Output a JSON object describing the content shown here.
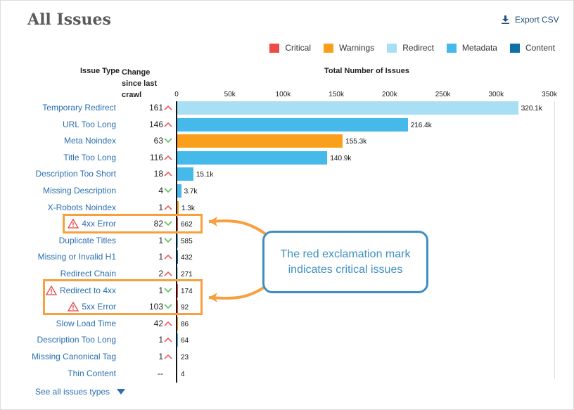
{
  "header": {
    "title": "All Issues",
    "export_label": "Export CSV"
  },
  "legend": [
    {
      "label": "Critical",
      "color": "#f04a45"
    },
    {
      "label": "Warnings",
      "color": "#f99f1b"
    },
    {
      "label": "Redirect",
      "color": "#a8dff4"
    },
    {
      "label": "Metadata",
      "color": "#45b9ea"
    },
    {
      "label": "Content",
      "color": "#0c72a6"
    }
  ],
  "columns": {
    "issue_type": "Issue Type",
    "change": "Change since last crawl",
    "total": "Total Number of Issues"
  },
  "callout": "The red exclamation mark indicates critical issues",
  "see_all": "See all issues types",
  "chart_data": {
    "type": "bar",
    "orientation": "horizontal",
    "title": "Total Number of Issues",
    "xlim": [
      0,
      350000
    ],
    "ticks": [
      "0",
      "50k",
      "100k",
      "150k",
      "200k",
      "250k",
      "300k",
      "350k"
    ],
    "rows": [
      {
        "issue": "Temporary Redirect",
        "change": "161",
        "trend": "up",
        "value": 320100,
        "label": "320.1k",
        "category": "Redirect",
        "critical": false
      },
      {
        "issue": "URL Too Long",
        "change": "146",
        "trend": "up",
        "value": 216400,
        "label": "216.4k",
        "category": "Metadata",
        "critical": false
      },
      {
        "issue": "Meta Noindex",
        "change": "63",
        "trend": "down",
        "value": 155300,
        "label": "155.3k",
        "category": "Warnings",
        "critical": false
      },
      {
        "issue": "Title Too Long",
        "change": "116",
        "trend": "up",
        "value": 140900,
        "label": "140.9k",
        "category": "Metadata",
        "critical": false
      },
      {
        "issue": "Description Too Short",
        "change": "18",
        "trend": "up",
        "value": 15100,
        "label": "15.1k",
        "category": "Metadata",
        "critical": false
      },
      {
        "issue": "Missing Description",
        "change": "4",
        "trend": "down",
        "value": 3700,
        "label": "3.7k",
        "category": "Metadata",
        "critical": false
      },
      {
        "issue": "X-Robots Noindex",
        "change": "1",
        "trend": "up",
        "value": 1300,
        "label": "1.3k",
        "category": "Warnings",
        "critical": false
      },
      {
        "issue": "4xx Error",
        "change": "82",
        "trend": "down",
        "value": 662,
        "label": "662",
        "category": "Critical",
        "critical": true
      },
      {
        "issue": "Duplicate Titles",
        "change": "1",
        "trend": "down",
        "value": 585,
        "label": "585",
        "category": "Metadata",
        "critical": false
      },
      {
        "issue": "Missing or Invalid H1",
        "change": "1",
        "trend": "up",
        "value": 432,
        "label": "432",
        "category": "Content",
        "critical": false
      },
      {
        "issue": "Redirect Chain",
        "change": "2",
        "trend": "up",
        "value": 271,
        "label": "271",
        "category": "Redirect",
        "critical": false
      },
      {
        "issue": "Redirect to 4xx",
        "change": "1",
        "trend": "down",
        "value": 174,
        "label": "174",
        "category": "Critical",
        "critical": true
      },
      {
        "issue": "5xx Error",
        "change": "103",
        "trend": "down",
        "value": 92,
        "label": "92",
        "category": "Critical",
        "critical": true
      },
      {
        "issue": "Slow Load Time",
        "change": "42",
        "trend": "up",
        "value": 86,
        "label": "86",
        "category": "Warnings",
        "critical": false
      },
      {
        "issue": "Description Too Long",
        "change": "1",
        "trend": "up",
        "value": 64,
        "label": "64",
        "category": "Metadata",
        "critical": false
      },
      {
        "issue": "Missing Canonical Tag",
        "change": "1",
        "trend": "up",
        "value": 23,
        "label": "23",
        "category": "Warnings",
        "critical": false
      },
      {
        "issue": "Thin Content",
        "change": "--",
        "trend": "none",
        "value": 4,
        "label": "4",
        "category": "Content",
        "critical": false
      }
    ]
  }
}
